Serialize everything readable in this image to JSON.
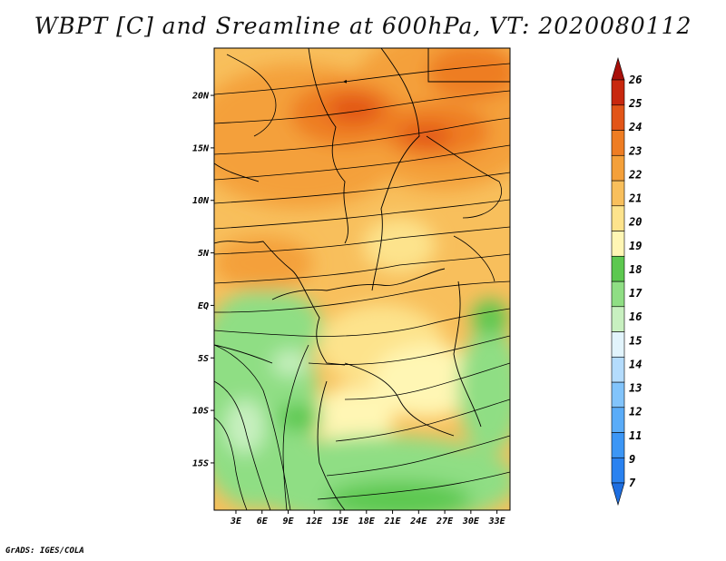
{
  "title": "WBPT [C] and Sreamline at 600hPa, VT: 2020080112",
  "credit": "GrADS: IGES/COLA",
  "map": {
    "lat_ticks": [
      "20N",
      "15N",
      "10N",
      "5N",
      "EQ",
      "5S",
      "10S",
      "15S"
    ],
    "lon_ticks": [
      "3E",
      "6E",
      "9E",
      "12E",
      "15E",
      "18E",
      "21E",
      "24E",
      "27E",
      "30E",
      "33E"
    ],
    "lat_range": [
      -19.5,
      24.5
    ],
    "lon_range": [
      0.5,
      34.5
    ]
  },
  "colorbar": {
    "labels": [
      "7",
      "9",
      "11",
      "12",
      "13",
      "14",
      "15",
      "16",
      "17",
      "18",
      "19",
      "20",
      "21",
      "22",
      "23",
      "24",
      "25",
      "26"
    ],
    "colors": [
      "#1e6ee0",
      "#2a82f0",
      "#3c96f5",
      "#5aacf8",
      "#82c4fb",
      "#b4dcfd",
      "#e2f4fc",
      "#c8f0c0",
      "#8fde84",
      "#5cc84f",
      "#fff6b4",
      "#fde38c",
      "#f8bf5c",
      "#f4a03a",
      "#ee7d23",
      "#e25518",
      "#c8280e",
      "#a8100a"
    ]
  }
}
